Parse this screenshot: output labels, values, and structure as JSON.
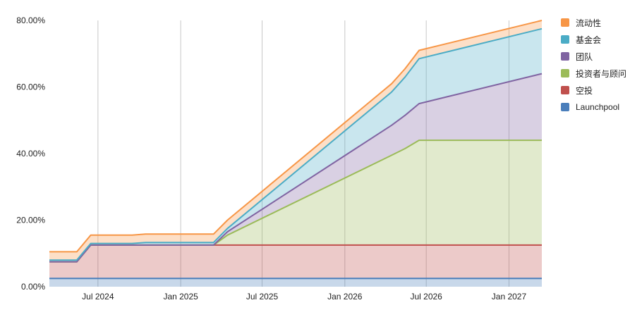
{
  "chart_data": {
    "type": "area",
    "stacked": true,
    "title": "",
    "xlabel": "",
    "ylabel": "",
    "x_ticks": [
      "Jul 2024",
      "Jan 2025",
      "Jul 2025",
      "Jan 2026",
      "Jul 2026",
      "Jan 2027"
    ],
    "y_ticks": [
      "0.00%",
      "20.00%",
      "40.00%",
      "60.00%",
      "80.00%"
    ],
    "ylim": [
      0,
      80
    ],
    "grid": {
      "vertical": true,
      "horizontal": false
    },
    "legend_position": "right",
    "x": [
      "2024-03-15",
      "2024-05-15",
      "2024-06-15",
      "2024-09-15",
      "2024-10-15",
      "2025-03-15",
      "2025-04-15",
      "2026-04-15",
      "2026-05-15",
      "2026-06-15",
      "2027-03-15"
    ],
    "series": [
      {
        "name": "Launchpool",
        "color": "#4a7ebb",
        "values": [
          2.5,
          2.5,
          2.5,
          2.5,
          2.5,
          2.5,
          2.5,
          2.5,
          2.5,
          2.5,
          2.5
        ]
      },
      {
        "name": "空投",
        "color": "#c0504d",
        "values": [
          5,
          5,
          10,
          10,
          10,
          10,
          10,
          10,
          10,
          10,
          10
        ]
      },
      {
        "name": "投资者与顾问",
        "color": "#9bbb59",
        "values": [
          0,
          0,
          0,
          0,
          0,
          0,
          3,
          27,
          29,
          31.5,
          31.5
        ]
      },
      {
        "name": "团队",
        "color": "#8064a2",
        "values": [
          0,
          0,
          0,
          0,
          0,
          0,
          1,
          9,
          10,
          11,
          20
        ]
      },
      {
        "name": "基金会",
        "color": "#4bacc6",
        "values": [
          0.5,
          0.5,
          0.5,
          0.5,
          0.8,
          0.8,
          1,
          10,
          11.5,
          13.5,
          13.5
        ]
      },
      {
        "name": "流动性",
        "color": "#f79646",
        "values": [
          2.5,
          2.5,
          2.5,
          2.5,
          2.5,
          2.5,
          2.5,
          2.5,
          2.5,
          2.5,
          2.5
        ]
      }
    ]
  }
}
